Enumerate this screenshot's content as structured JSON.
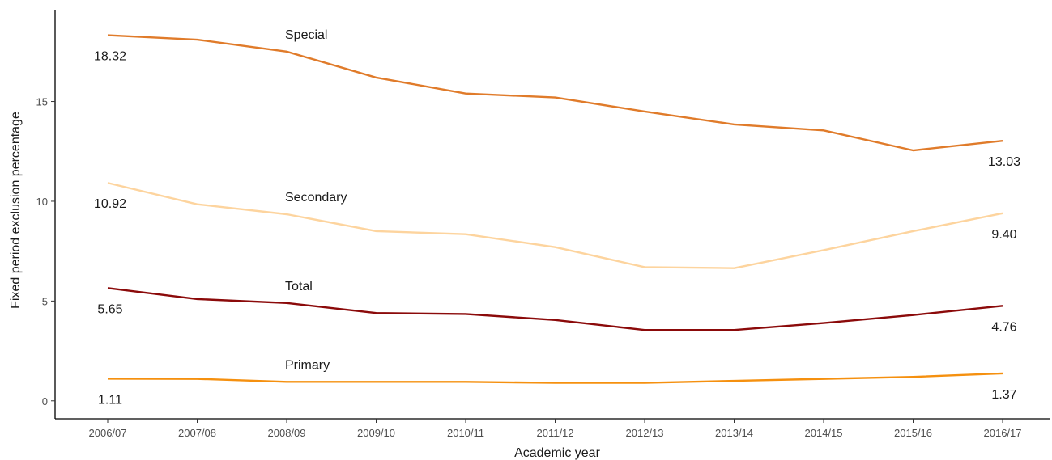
{
  "chart_data": {
    "type": "line",
    "xlabel": "Academic year",
    "ylabel": "Fixed period exclusion percentage",
    "categories": [
      "2006/07",
      "2007/08",
      "2008/09",
      "2009/10",
      "2010/11",
      "2011/12",
      "2012/13",
      "2013/14",
      "2014/15",
      "2015/16",
      "2016/17"
    ],
    "ylim": [
      -0.9,
      19.6
    ],
    "yticks": [
      0,
      5,
      10,
      15
    ],
    "grid": false,
    "legend": "none",
    "series": [
      {
        "name": "Special",
        "color": "#e07b2a",
        "values": [
          18.32,
          18.1,
          17.5,
          16.2,
          15.4,
          15.2,
          14.5,
          13.85,
          13.55,
          12.55,
          13.03
        ],
        "start_label": "18.32",
        "end_label": "13.03"
      },
      {
        "name": "Secondary",
        "color": "#fdd49e",
        "values": [
          10.92,
          9.85,
          9.35,
          8.5,
          8.35,
          7.7,
          6.7,
          6.65,
          7.55,
          8.5,
          9.4
        ],
        "start_label": "10.92",
        "end_label": "9.40"
      },
      {
        "name": "Total",
        "color": "#8b0a0a",
        "values": [
          5.65,
          5.1,
          4.9,
          4.4,
          4.35,
          4.05,
          3.55,
          3.55,
          3.9,
          4.3,
          4.76
        ],
        "start_label": "5.65",
        "end_label": "4.76"
      },
      {
        "name": "Primary",
        "color": "#f5900f",
        "values": [
          1.11,
          1.1,
          0.95,
          0.95,
          0.95,
          0.9,
          0.9,
          1.0,
          1.1,
          1.2,
          1.37
        ],
        "start_label": "1.11",
        "end_label": "1.37"
      }
    ]
  }
}
